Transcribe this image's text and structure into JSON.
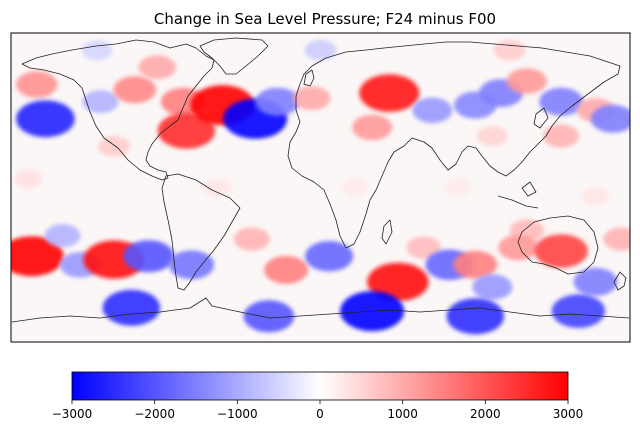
{
  "title": "Change in Sea Level Pressure; F24 minus F00",
  "colorbar": {
    "colormap": "bwr",
    "range": [
      -3000,
      3000
    ],
    "colors": {
      "min": "#0000ff",
      "mid": "#ffffff",
      "max": "#ff0000"
    },
    "ticks": [
      {
        "value": -3000,
        "label": "−3000"
      },
      {
        "value": -2000,
        "label": "−2000"
      },
      {
        "value": -1000,
        "label": "−1000"
      },
      {
        "value": 0,
        "label": "0"
      },
      {
        "value": 1000,
        "label": "1000"
      },
      {
        "value": 2000,
        "label": "2000"
      },
      {
        "value": 3000,
        "label": "3000"
      }
    ]
  },
  "map": {
    "projection": "PlateCarree",
    "extent": {
      "lon": [
        -180,
        180
      ],
      "lat": [
        -90,
        90
      ]
    },
    "coastline_color": "#222222",
    "anomalies": [
      {
        "lon": -165,
        "lat": 60,
        "value": 1300
      },
      {
        "lon": -160,
        "lat": 40,
        "value": -2600
      },
      {
        "lon": -128,
        "lat": 50,
        "value": -900
      },
      {
        "lon": -108,
        "lat": 57,
        "value": 1400
      },
      {
        "lon": -120,
        "lat": 24,
        "value": 600
      },
      {
        "lon": -95,
        "lat": 70,
        "value": 1000
      },
      {
        "lon": -80,
        "lat": 50,
        "value": 1500
      },
      {
        "lon": -78,
        "lat": 33,
        "value": 2500
      },
      {
        "lon": -57,
        "lat": 48,
        "value": 3000
      },
      {
        "lon": -38,
        "lat": 40,
        "value": -3000
      },
      {
        "lon": -25,
        "lat": 50,
        "value": -1500
      },
      {
        "lon": -5,
        "lat": 52,
        "value": 1000
      },
      {
        "lon": 40,
        "lat": 55,
        "value": 2700
      },
      {
        "lon": 30,
        "lat": 35,
        "value": 1200
      },
      {
        "lon": 65,
        "lat": 45,
        "value": -1200
      },
      {
        "lon": 90,
        "lat": 48,
        "value": -1400
      },
      {
        "lon": 105,
        "lat": 55,
        "value": -1500
      },
      {
        "lon": 120,
        "lat": 62,
        "value": 1200
      },
      {
        "lon": 140,
        "lat": 50,
        "value": -1500
      },
      {
        "lon": 160,
        "lat": 45,
        "value": 1000
      },
      {
        "lon": 170,
        "lat": 40,
        "value": -1500
      },
      {
        "lon": 100,
        "lat": 30,
        "value": 500
      },
      {
        "lon": 140,
        "lat": 30,
        "value": 900
      },
      {
        "lon": -170,
        "lat": 5,
        "value": 350
      },
      {
        "lon": -60,
        "lat": 0,
        "value": 300
      },
      {
        "lon": 20,
        "lat": 0,
        "value": 250
      },
      {
        "lon": 80,
        "lat": 0,
        "value": 250
      },
      {
        "lon": 160,
        "lat": -5,
        "value": 300
      },
      {
        "lon": 120,
        "lat": -25,
        "value": 800
      },
      {
        "lon": 115,
        "lat": -35,
        "value": 1200
      },
      {
        "lon": 140,
        "lat": -37,
        "value": 2200
      },
      {
        "lon": -168,
        "lat": -40,
        "value": 3000
      },
      {
        "lon": -150,
        "lat": -28,
        "value": -900
      },
      {
        "lon": -140,
        "lat": -45,
        "value": -1200
      },
      {
        "lon": -120,
        "lat": -42,
        "value": 2800
      },
      {
        "lon": -100,
        "lat": -40,
        "value": -2000
      },
      {
        "lon": -75,
        "lat": -45,
        "value": -1600
      },
      {
        "lon": -40,
        "lat": -30,
        "value": 900
      },
      {
        "lon": -20,
        "lat": -48,
        "value": 1500
      },
      {
        "lon": 5,
        "lat": -40,
        "value": -1800
      },
      {
        "lon": 45,
        "lat": -55,
        "value": 2800
      },
      {
        "lon": 60,
        "lat": -35,
        "value": 800
      },
      {
        "lon": 75,
        "lat": -45,
        "value": -1800
      },
      {
        "lon": 90,
        "lat": -45,
        "value": 1500
      },
      {
        "lon": 100,
        "lat": -58,
        "value": -1200
      },
      {
        "lon": 160,
        "lat": -55,
        "value": -1500
      },
      {
        "lon": 175,
        "lat": -30,
        "value": 900
      },
      {
        "lon": -110,
        "lat": -70,
        "value": -2500
      },
      {
        "lon": -30,
        "lat": -75,
        "value": -2000
      },
      {
        "lon": 30,
        "lat": -72,
        "value": -3000
      },
      {
        "lon": 90,
        "lat": -75,
        "value": -2500
      },
      {
        "lon": 150,
        "lat": -72,
        "value": -2200
      },
      {
        "lon": 0,
        "lat": 80,
        "value": -600
      },
      {
        "lon": 110,
        "lat": 80,
        "value": 600
      },
      {
        "lon": -130,
        "lat": 80,
        "value": -500
      }
    ]
  }
}
